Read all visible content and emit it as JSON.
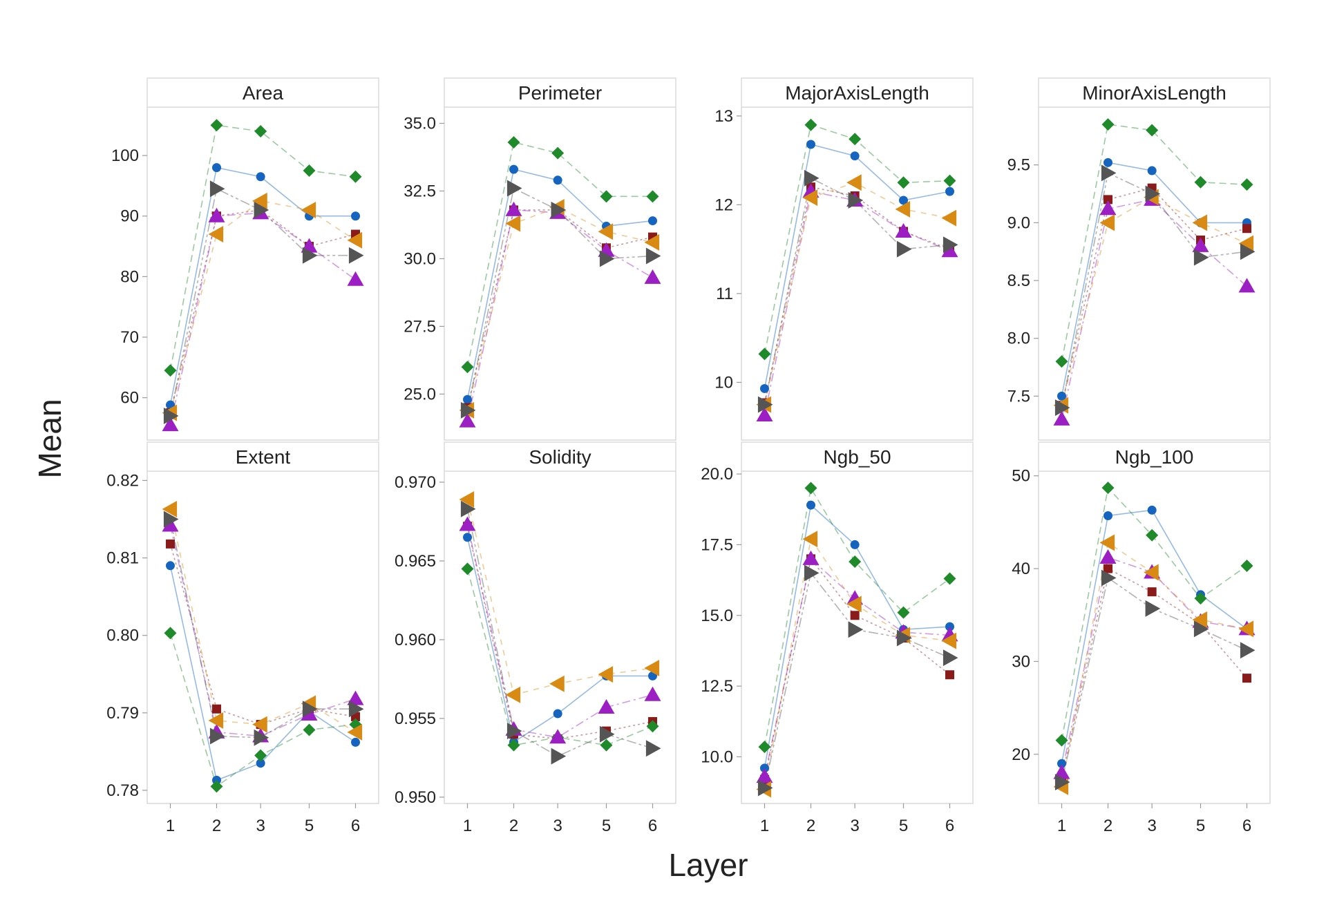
{
  "figure": {
    "ylabel": "Mean",
    "xlabel": "Layer"
  },
  "colors": {
    "s1": "#1565c0",
    "s2": "#8b1a1a",
    "s3": "#1e8a2a",
    "s4": "#9c1fc4",
    "s5": "#d98a12",
    "s6": "#555555",
    "panel_border": "#d8d8d8",
    "line_alpha": "0.45"
  },
  "chart_data": [
    {
      "type": "line",
      "title": "Area",
      "categories": [
        "1",
        "2",
        "3",
        "5",
        "6"
      ],
      "yticks": [
        60,
        70,
        80,
        90,
        100
      ],
      "ylim": [
        53,
        108
      ],
      "series": [
        {
          "marker": "circle",
          "color": "#1565c0",
          "values": [
            58.8,
            98,
            96.5,
            90,
            90
          ]
        },
        {
          "marker": "square",
          "color": "#8b1a1a",
          "values": [
            57.5,
            90,
            91,
            85,
            87
          ]
        },
        {
          "marker": "diamond",
          "color": "#1e8a2a",
          "values": [
            64.5,
            105,
            104,
            97.5,
            96.5
          ]
        },
        {
          "marker": "triangle-up",
          "color": "#9c1fc4",
          "values": [
            55.5,
            90,
            90.5,
            85,
            79.5
          ]
        },
        {
          "marker": "triangle-left",
          "color": "#d98a12",
          "values": [
            57.5,
            87,
            92.5,
            91,
            86
          ]
        },
        {
          "marker": "triangle-right",
          "color": "#555555",
          "values": [
            57,
            94.5,
            91,
            83.5,
            83.5
          ]
        }
      ]
    },
    {
      "type": "line",
      "title": "Perimeter",
      "categories": [
        "1",
        "2",
        "3",
        "5",
        "6"
      ],
      "yticks": [
        25.0,
        27.5,
        30.0,
        32.5,
        35.0
      ],
      "yticklabels": [
        "25.0",
        "27.5",
        "30.0",
        "32.5",
        "35.0"
      ],
      "ylim": [
        23.3,
        35.6
      ],
      "series": [
        {
          "marker": "circle",
          "color": "#1565c0",
          "values": [
            24.8,
            33.3,
            32.9,
            31.2,
            31.4
          ]
        },
        {
          "marker": "square",
          "color": "#8b1a1a",
          "values": [
            24.5,
            31.8,
            31.8,
            30.4,
            30.8
          ]
        },
        {
          "marker": "diamond",
          "color": "#1e8a2a",
          "values": [
            26.0,
            34.3,
            33.9,
            32.3,
            32.3
          ]
        },
        {
          "marker": "triangle-up",
          "color": "#9c1fc4",
          "values": [
            24.0,
            31.8,
            31.7,
            30.3,
            29.3
          ]
        },
        {
          "marker": "triangle-left",
          "color": "#d98a12",
          "values": [
            24.4,
            31.3,
            31.9,
            31.0,
            30.6
          ]
        },
        {
          "marker": "triangle-right",
          "color": "#555555",
          "values": [
            24.4,
            32.6,
            31.8,
            30.0,
            30.1
          ]
        }
      ]
    },
    {
      "type": "line",
      "title": "MajorAxisLength",
      "categories": [
        "1",
        "2",
        "3",
        "5",
        "6"
      ],
      "yticks": [
        10,
        11,
        12,
        13
      ],
      "ylim": [
        9.35,
        13.1
      ],
      "series": [
        {
          "marker": "circle",
          "color": "#1565c0",
          "values": [
            9.93,
            12.68,
            12.55,
            12.05,
            12.15
          ]
        },
        {
          "marker": "square",
          "color": "#8b1a1a",
          "values": [
            9.77,
            12.2,
            12.1,
            11.7,
            11.5
          ]
        },
        {
          "marker": "diamond",
          "color": "#1e8a2a",
          "values": [
            10.32,
            12.9,
            12.74,
            12.25,
            12.27
          ]
        },
        {
          "marker": "triangle-up",
          "color": "#9c1fc4",
          "values": [
            9.63,
            12.15,
            12.05,
            11.7,
            11.48
          ]
        },
        {
          "marker": "triangle-left",
          "color": "#d98a12",
          "values": [
            9.75,
            12.08,
            12.25,
            11.95,
            11.85
          ]
        },
        {
          "marker": "triangle-right",
          "color": "#555555",
          "values": [
            9.75,
            12.3,
            12.05,
            11.5,
            11.55
          ]
        }
      ]
    },
    {
      "type": "line",
      "title": "MinorAxisLength",
      "categories": [
        "1",
        "2",
        "3",
        "5",
        "6"
      ],
      "yticks": [
        7.5,
        8.0,
        8.5,
        9.0,
        9.5
      ],
      "yticklabels": [
        "7.5",
        "8.0",
        "8.5",
        "9.0",
        "9.5"
      ],
      "ylim": [
        7.12,
        10.0
      ],
      "series": [
        {
          "marker": "circle",
          "color": "#1565c0",
          "values": [
            7.5,
            9.52,
            9.45,
            9.0,
            9.0
          ]
        },
        {
          "marker": "square",
          "color": "#8b1a1a",
          "values": [
            7.42,
            9.2,
            9.3,
            8.85,
            8.95
          ]
        },
        {
          "marker": "diamond",
          "color": "#1e8a2a",
          "values": [
            7.8,
            9.85,
            9.8,
            9.35,
            9.33
          ]
        },
        {
          "marker": "triangle-up",
          "color": "#9c1fc4",
          "values": [
            7.3,
            9.12,
            9.2,
            8.8,
            8.45
          ]
        },
        {
          "marker": "triangle-left",
          "color": "#d98a12",
          "values": [
            7.42,
            9.0,
            9.22,
            9.0,
            8.82
          ]
        },
        {
          "marker": "triangle-right",
          "color": "#555555",
          "values": [
            7.4,
            9.43,
            9.25,
            8.7,
            8.75
          ]
        }
      ]
    },
    {
      "type": "line",
      "title": "Extent",
      "categories": [
        "1",
        "2",
        "3",
        "5",
        "6"
      ],
      "yticks": [
        0.78,
        0.79,
        0.8,
        0.81,
        0.82
      ],
      "yticklabels": [
        "0.78",
        "0.79",
        "0.80",
        "0.81",
        "0.82"
      ],
      "ylim": [
        0.7783,
        0.8212
      ],
      "series": [
        {
          "marker": "circle",
          "color": "#1565c0",
          "values": [
            0.809,
            0.7813,
            0.7835,
            0.7902,
            0.7862
          ]
        },
        {
          "marker": "square",
          "color": "#8b1a1a",
          "values": [
            0.8118,
            0.7905,
            0.7885,
            0.7905,
            0.7895
          ]
        },
        {
          "marker": "diamond",
          "color": "#1e8a2a",
          "values": [
            0.8003,
            0.7805,
            0.7845,
            0.7878,
            0.7885
          ]
        },
        {
          "marker": "triangle-up",
          "color": "#9c1fc4",
          "values": [
            0.8142,
            0.7875,
            0.787,
            0.7898,
            0.7918
          ]
        },
        {
          "marker": "triangle-left",
          "color": "#d98a12",
          "values": [
            0.8163,
            0.789,
            0.7885,
            0.7912,
            0.7875
          ]
        },
        {
          "marker": "triangle-right",
          "color": "#555555",
          "values": [
            0.815,
            0.787,
            0.7868,
            0.7905,
            0.7905
          ]
        }
      ]
    },
    {
      "type": "line",
      "title": "Solidity",
      "categories": [
        "1",
        "2",
        "3",
        "5",
        "6"
      ],
      "yticks": [
        0.95,
        0.955,
        0.96,
        0.965,
        0.97
      ],
      "yticklabels": [
        "0.950",
        "0.955",
        "0.960",
        "0.965",
        "0.970"
      ],
      "ylim": [
        0.9496,
        0.9707
      ],
      "series": [
        {
          "marker": "circle",
          "color": "#1565c0",
          "values": [
            0.9665,
            0.9535,
            0.9553,
            0.9577,
            0.9577
          ]
        },
        {
          "marker": "square",
          "color": "#8b1a1a",
          "values": [
            0.9672,
            0.954,
            0.9537,
            0.9542,
            0.9548
          ]
        },
        {
          "marker": "diamond",
          "color": "#1e8a2a",
          "values": [
            0.9645,
            0.9533,
            0.9538,
            0.9533,
            0.9545
          ]
        },
        {
          "marker": "triangle-up",
          "color": "#9c1fc4",
          "values": [
            0.9673,
            0.9543,
            0.9538,
            0.9557,
            0.9565
          ]
        },
        {
          "marker": "triangle-left",
          "color": "#d98a12",
          "values": [
            0.9689,
            0.9565,
            0.9572,
            0.9578,
            0.9582
          ]
        },
        {
          "marker": "triangle-right",
          "color": "#555555",
          "values": [
            0.9683,
            0.9542,
            0.9526,
            0.954,
            0.9531
          ]
        }
      ]
    },
    {
      "type": "line",
      "title": "Ngb_50",
      "categories": [
        "1",
        "2",
        "3",
        "5",
        "6"
      ],
      "yticks": [
        10.0,
        12.5,
        15.0,
        17.5,
        20.0
      ],
      "yticklabels": [
        "10.0",
        "12.5",
        "15.0",
        "17.5",
        "20.0"
      ],
      "ylim": [
        8.35,
        20.1
      ],
      "series": [
        {
          "marker": "circle",
          "color": "#1565c0",
          "values": [
            9.6,
            18.9,
            17.5,
            14.5,
            14.6
          ]
        },
        {
          "marker": "square",
          "color": "#8b1a1a",
          "values": [
            9.2,
            17.0,
            15.0,
            14.2,
            12.9
          ]
        },
        {
          "marker": "diamond",
          "color": "#1e8a2a",
          "values": [
            10.35,
            19.5,
            16.9,
            15.1,
            16.3
          ]
        },
        {
          "marker": "triangle-up",
          "color": "#9c1fc4",
          "values": [
            9.3,
            17.0,
            15.6,
            14.4,
            14.3
          ]
        },
        {
          "marker": "triangle-left",
          "color": "#d98a12",
          "values": [
            8.85,
            17.7,
            15.4,
            14.3,
            14.1
          ]
        },
        {
          "marker": "triangle-right",
          "color": "#555555",
          "values": [
            8.9,
            16.5,
            14.5,
            14.2,
            13.5
          ]
        }
      ]
    },
    {
      "type": "line",
      "title": "Ngb_100",
      "categories": [
        "1",
        "2",
        "3",
        "5",
        "6"
      ],
      "yticks": [
        20,
        30,
        40,
        50
      ],
      "ylim": [
        14.7,
        50.5
      ],
      "series": [
        {
          "marker": "circle",
          "color": "#1565c0",
          "values": [
            19,
            45.7,
            46.3,
            37.2,
            33.5
          ]
        },
        {
          "marker": "square",
          "color": "#8b1a1a",
          "values": [
            17.5,
            40,
            37.5,
            34,
            28.2
          ]
        },
        {
          "marker": "diamond",
          "color": "#1e8a2a",
          "values": [
            21.5,
            48.7,
            43.6,
            36.8,
            40.3
          ]
        },
        {
          "marker": "triangle-up",
          "color": "#9c1fc4",
          "values": [
            18,
            41.2,
            39.6,
            34.3,
            33.5
          ]
        },
        {
          "marker": "triangle-left",
          "color": "#d98a12",
          "values": [
            16.5,
            42.8,
            39.6,
            34.5,
            33.5
          ]
        },
        {
          "marker": "triangle-right",
          "color": "#555555",
          "values": [
            17,
            39,
            35.7,
            33.5,
            31.2
          ]
        }
      ]
    }
  ]
}
